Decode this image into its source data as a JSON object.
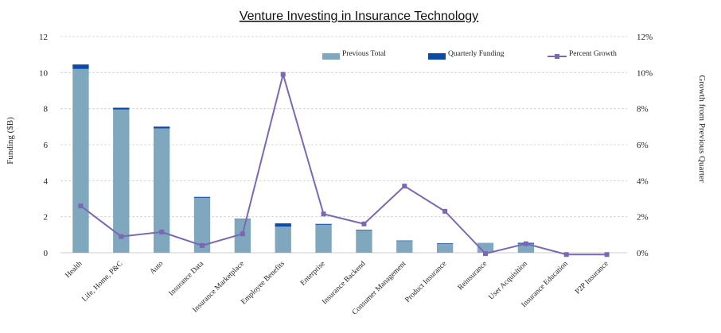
{
  "chart_data": {
    "type": "bar",
    "title": "Venture Investing in Insurance Technology",
    "ylabel": "Funding ($B)",
    "y2label": "Growth from Previous Quarter",
    "ylim": [
      0,
      12
    ],
    "y2lim": [
      0,
      12
    ],
    "yticks": [
      "0",
      "2",
      "4",
      "6",
      "8",
      "10",
      "12"
    ],
    "y2ticks": [
      "0%",
      "2%",
      "4%",
      "6%",
      "8%",
      "10%",
      "12%"
    ],
    "grid": true,
    "legend_position": "top-right",
    "categories": [
      "Health",
      "Life, Home, P&C",
      "Auto",
      "Insurance Data",
      "Insurance Marketplace",
      "Employee Benefits",
      "Enterprise",
      "Insurance Backend",
      "Consumer Management",
      "Product Insurance",
      "Reinsurance",
      "User Acquisition",
      "Insurance Education",
      "P2P Insurance"
    ],
    "series": [
      {
        "name": "Previous Total",
        "kind": "bar-stack",
        "color": "#7fa7bd",
        "values": [
          10.2,
          7.95,
          6.9,
          3.05,
          1.85,
          1.45,
          1.55,
          1.25,
          0.65,
          0.5,
          0.55,
          0.5,
          0.0,
          0.0
        ]
      },
      {
        "name": "Quarterly Funding",
        "kind": "bar-stack",
        "color": "#0b4aa6",
        "values": [
          0.25,
          0.1,
          0.1,
          0.05,
          0.03,
          0.18,
          0.05,
          0.03,
          0.03,
          0.03,
          0.0,
          0.05,
          0.0,
          0.0
        ]
      },
      {
        "name": "Percent Growth",
        "kind": "line",
        "axis": "right",
        "color": "#7b68b5",
        "values": [
          2.6,
          0.9,
          1.15,
          0.4,
          1.05,
          9.9,
          2.15,
          1.6,
          3.7,
          2.3,
          -0.05,
          0.5,
          -0.1,
          -0.1
        ]
      }
    ]
  }
}
